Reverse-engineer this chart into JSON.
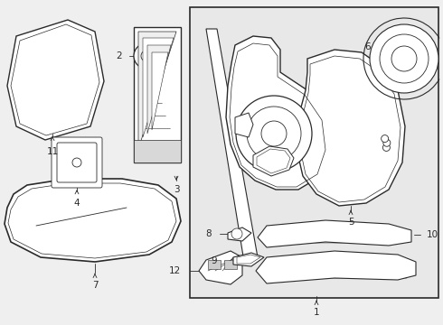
{
  "bg": "#efefef",
  "lc": "#2a2a2a",
  "box_fc": "#e8e8e8",
  "fs": 7.5,
  "figw": 4.9,
  "figh": 3.6,
  "dpi": 100
}
